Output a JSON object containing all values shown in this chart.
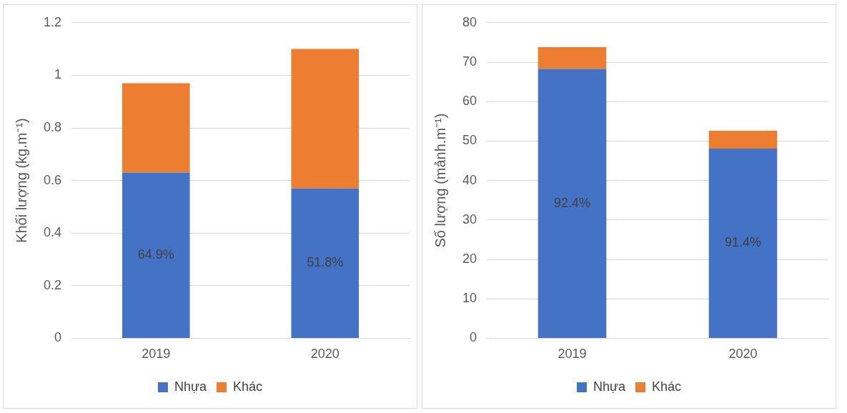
{
  "chart_data": [
    {
      "type": "bar",
      "stacked": true,
      "categories": [
        "2019",
        "2020"
      ],
      "ylabel": "Khối lượng (kg.m⁻¹)",
      "ylim": [
        0,
        1.2
      ],
      "yticks": [
        0,
        0.2,
        0.4,
        0.6,
        0.8,
        1,
        1.2
      ],
      "grid": "y",
      "legend": "bottom",
      "series": [
        {
          "name": "Nhựa",
          "color": "#4472c4",
          "values": [
            0.63,
            0.57
          ]
        },
        {
          "name": "Khác",
          "color": "#ed7d31",
          "values": [
            0.34,
            0.53
          ]
        }
      ],
      "annotations": [
        "64.9%",
        "51.8%"
      ]
    },
    {
      "type": "bar",
      "stacked": true,
      "categories": [
        "2019",
        "2020"
      ],
      "ylabel": "Số lượng (mảnh.m⁻¹)",
      "ylim": [
        0,
        80
      ],
      "yticks": [
        0,
        10,
        20,
        30,
        40,
        50,
        60,
        70,
        80
      ],
      "grid": "y",
      "legend": "bottom",
      "series": [
        {
          "name": "Nhựa",
          "color": "#4472c4",
          "values": [
            68.3,
            48.1
          ]
        },
        {
          "name": "Khác",
          "color": "#ed7d31",
          "values": [
            5.5,
            4.5
          ]
        }
      ],
      "annotations": [
        "92.4%",
        "91.4%"
      ]
    }
  ]
}
